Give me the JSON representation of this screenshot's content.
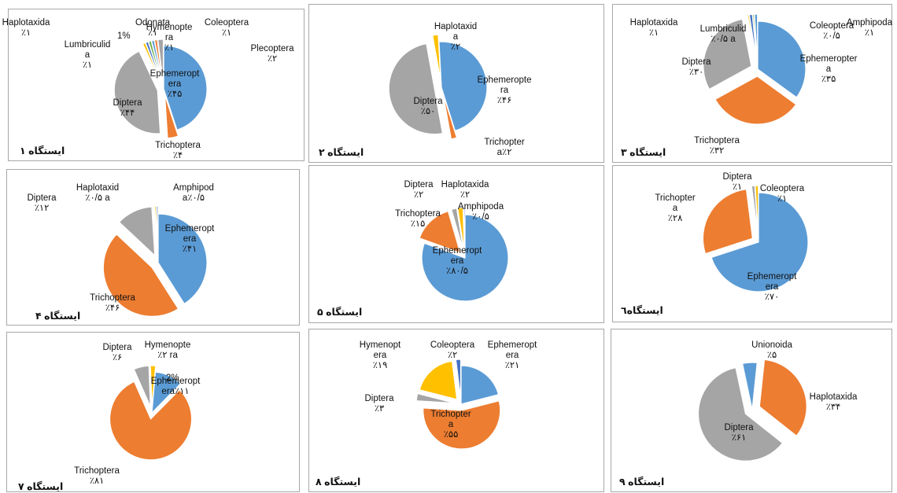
{
  "colors": {
    "blue": "#5b9bd5",
    "orange": "#ed7d31",
    "gray": "#a5a5a5",
    "yellow": "#ffc000",
    "darkblue": "#4472c4",
    "green": "#70ad47"
  },
  "chart_data": [
    {
      "type": "pie",
      "station": "ایستگاه ۱",
      "slices": [
        {
          "name": "Ephemeroptera",
          "label_lines": [
            "Ephemeropt",
            "era"
          ],
          "value": 45,
          "pct_label": "٪۴۵",
          "color": "blue",
          "exploded": false
        },
        {
          "name": "Trichoptera",
          "label_lines": [
            "Trichoptera"
          ],
          "value": 4,
          "pct_label": "٪۴",
          "color": "orange",
          "exploded": true
        },
        {
          "name": "Diptera",
          "label_lines": [
            "Diptera"
          ],
          "value": 44,
          "pct_label": "٪۴۴",
          "color": "gray",
          "exploded": true
        },
        {
          "name": "Lumbriculida",
          "label_lines": [
            "Lumbriculid",
            "a"
          ],
          "value": 1,
          "pct_label": "٪۱",
          "color": "yellow",
          "exploded": true
        },
        {
          "name": "Haplotaxida",
          "label_lines": [
            "Haplotaxida"
          ],
          "value": 1,
          "pct_label": "٪۱",
          "color": "darkblue",
          "exploded": true
        },
        {
          "name": "Odonata",
          "label_lines": [
            "Odonata"
          ],
          "value": 1,
          "pct_label": "٪۱",
          "color": "green",
          "exploded": true
        },
        {
          "name": "Hymenoptera",
          "label_lines": [
            "Hymenopte",
            "ra"
          ],
          "value": 1,
          "pct_label": "٪۱",
          "color": "blue",
          "exploded": true
        },
        {
          "name": "Coleoptera",
          "label_lines": [
            "Coleoptera"
          ],
          "value": 1,
          "pct_label": "٪۱",
          "color": "orange",
          "exploded": true
        },
        {
          "name": "Plecoptera",
          "label_lines": [
            "Plecoptera"
          ],
          "value": 2,
          "pct_label": "٪۲",
          "color": "gray",
          "exploded": true
        }
      ],
      "annotations": [
        "1%"
      ]
    },
    {
      "type": "pie",
      "station": "ایستگاه ۲",
      "slices": [
        {
          "name": "Ephemeroptera",
          "label_lines": [
            "Ephemeropte",
            "ra"
          ],
          "value": 46,
          "pct_label": "٪۴۶",
          "color": "blue",
          "exploded": false
        },
        {
          "name": "Trichoptera",
          "label_lines": [
            "Trichopter",
            "a٪۲"
          ],
          "value": 2,
          "pct_label": "",
          "color": "orange",
          "exploded": true
        },
        {
          "name": "Diptera",
          "label_lines": [
            "Diptera"
          ],
          "value": 50,
          "pct_label": "٪۵۰",
          "color": "gray",
          "exploded": true
        },
        {
          "name": "Haplotaxida",
          "label_lines": [
            "Haplotaxid",
            "a"
          ],
          "value": 2,
          "pct_label": "٪۲",
          "color": "yellow",
          "exploded": true
        }
      ]
    },
    {
      "type": "pie",
      "station": "ایستگاه ۳",
      "slices": [
        {
          "name": "Ephemeroptera",
          "label_lines": [
            "Ephemeropter",
            "a"
          ],
          "value": 35,
          "pct_label": "٪۳۵",
          "color": "blue",
          "exploded": false
        },
        {
          "name": "Trichoptera",
          "label_lines": [
            "Trichoptera"
          ],
          "value": 32,
          "pct_label": "٪۳۲",
          "color": "orange",
          "exploded": true
        },
        {
          "name": "Diptera",
          "label_lines": [
            "Diptera"
          ],
          "value": 30,
          "pct_label": "٪۳۰",
          "color": "gray",
          "exploded": true
        },
        {
          "name": "Lumbriculida",
          "label_lines": [
            "Lumbriculid",
            "٪۰/۵ a"
          ],
          "value": 0.5,
          "pct_label": "",
          "color": "yellow",
          "exploded": true
        },
        {
          "name": "Haplotaxida",
          "label_lines": [
            "Haplotaxida"
          ],
          "value": 1,
          "pct_label": "٪۱",
          "color": "darkblue",
          "exploded": true
        },
        {
          "name": "Coleoptera",
          "label_lines": [
            "Coleoptera"
          ],
          "value": 0.5,
          "pct_label": "٪۰/۵",
          "color": "green",
          "exploded": true
        },
        {
          "name": "Amphipoda",
          "label_lines": [
            "Amphipoda"
          ],
          "value": 1,
          "pct_label": "٪۱",
          "color": "blue",
          "exploded": true
        }
      ]
    },
    {
      "type": "pie",
      "station": "ایستگاه ۴",
      "slices": [
        {
          "name": "Ephemeroptera",
          "label_lines": [
            "Ephemeropt",
            "era"
          ],
          "value": 41,
          "pct_label": "٪۴۱",
          "color": "blue",
          "exploded": false
        },
        {
          "name": "Trichoptera",
          "label_lines": [
            "Trichoptera"
          ],
          "value": 46,
          "pct_label": "٪۴۶",
          "color": "orange",
          "exploded": true
        },
        {
          "name": "Diptera",
          "label_lines": [
            "Diptera"
          ],
          "value": 12,
          "pct_label": "٪۱۲",
          "color": "gray",
          "exploded": true
        },
        {
          "name": "Haplotaxida",
          "label_lines": [
            "Haplotaxid",
            "٪۰/۵ a"
          ],
          "value": 0.5,
          "pct_label": "",
          "color": "yellow",
          "exploded": true
        },
        {
          "name": "Amphipoda",
          "label_lines": [
            "Amphipod",
            "a٪۰/۵"
          ],
          "value": 0.5,
          "pct_label": "",
          "color": "darkblue",
          "exploded": true
        }
      ]
    },
    {
      "type": "pie",
      "station": "ایستگاه ۵",
      "slices": [
        {
          "name": "Ephemeroptera",
          "label_lines": [
            "Ephemeropt",
            "era"
          ],
          "value": 80.5,
          "pct_label": "٪۸۰/۵",
          "color": "blue",
          "exploded": false
        },
        {
          "name": "Trichoptera",
          "label_lines": [
            "Trichoptera"
          ],
          "value": 15,
          "pct_label": "٪۱۵",
          "color": "orange",
          "exploded": true
        },
        {
          "name": "Diptera",
          "label_lines": [
            "Diptera"
          ],
          "value": 2,
          "pct_label": "٪۲",
          "color": "gray",
          "exploded": true
        },
        {
          "name": "Haplotaxida",
          "label_lines": [
            "Haplotaxida"
          ],
          "value": 2,
          "pct_label": "٪۲",
          "color": "yellow",
          "exploded": true
        },
        {
          "name": "Amphipoda",
          "label_lines": [
            "Amphipoda"
          ],
          "value": 0.5,
          "pct_label": "٪۰/۵",
          "color": "darkblue",
          "exploded": true
        }
      ]
    },
    {
      "type": "pie",
      "station": "ایستگاه٦",
      "slices": [
        {
          "name": "Ephemeroptera",
          "label_lines": [
            "Ephemeropt",
            "era"
          ],
          "value": 70,
          "pct_label": "٪۷۰",
          "color": "blue",
          "exploded": false
        },
        {
          "name": "Trichoptera",
          "label_lines": [
            "Trichopter",
            "a"
          ],
          "value": 28,
          "pct_label": "٪۲۸",
          "color": "orange",
          "exploded": true
        },
        {
          "name": "Diptera",
          "label_lines": [
            "Diptera"
          ],
          "value": 1,
          "pct_label": "٪۱",
          "color": "gray",
          "exploded": true
        },
        {
          "name": "Coleoptera",
          "label_lines": [
            "Coleoptera"
          ],
          "value": 1,
          "pct_label": "٪۱",
          "color": "yellow",
          "exploded": true
        }
      ]
    },
    {
      "type": "pie",
      "station": "ایستگاه ۷",
      "slices": [
        {
          "name": "Ephemeroptera",
          "label_lines": [
            "Ephemeropt",
            "era٪۱۱"
          ],
          "value": 11,
          "pct_label": "",
          "color": "blue",
          "exploded": false
        },
        {
          "name": "Trichoptera",
          "label_lines": [
            "Trichoptera"
          ],
          "value": 81,
          "pct_label": "٪۸۱",
          "color": "orange",
          "exploded": true
        },
        {
          "name": "Diptera",
          "label_lines": [
            "Diptera"
          ],
          "value": 6,
          "pct_label": "٪۶",
          "color": "gray",
          "exploded": true
        },
        {
          "name": "Hymenoptera",
          "label_lines": [
            "Hymenopte",
            "٪۲ ra"
          ],
          "value": 2,
          "pct_label": "",
          "color": "yellow",
          "exploded": true
        }
      ],
      "annotations": [
        "2%"
      ]
    },
    {
      "type": "pie",
      "station": "ایستگاه ۸",
      "slices": [
        {
          "name": "Ephemeroptera",
          "label_lines": [
            "Ephemeropt",
            "era"
          ],
          "value": 21,
          "pct_label": "٪۲۱",
          "color": "blue",
          "exploded": false
        },
        {
          "name": "Trichoptera",
          "label_lines": [
            "Trichopter",
            "a"
          ],
          "value": 55,
          "pct_label": "٪۵۵",
          "color": "orange",
          "exploded": true
        },
        {
          "name": "Diptera",
          "label_lines": [
            "Diptera"
          ],
          "value": 3,
          "pct_label": "٪۳",
          "color": "gray",
          "exploded": true
        },
        {
          "name": "Hymenoptera",
          "label_lines": [
            "Hymenopt",
            "era"
          ],
          "value": 19,
          "pct_label": "٪۱۹",
          "color": "yellow",
          "exploded": true
        },
        {
          "name": "Coleoptera",
          "label_lines": [
            "Coleoptera"
          ],
          "value": 2,
          "pct_label": "٪۲",
          "color": "darkblue",
          "exploded": true
        }
      ]
    },
    {
      "type": "pie",
      "station": "ایستگاه ۹",
      "slices": [
        {
          "name": "Unionoida",
          "label_lines": [
            "Unionoida"
          ],
          "value": 5,
          "pct_label": "٪۵",
          "color": "blue",
          "exploded": false
        },
        {
          "name": "Haplotaxida",
          "label_lines": [
            "Haplotaxida"
          ],
          "value": 34,
          "pct_label": "٪۳۴",
          "color": "orange",
          "exploded": true
        },
        {
          "name": "Diptera",
          "label_lines": [
            "Diptera"
          ],
          "value": 61,
          "pct_label": "٪۶۱",
          "color": "gray",
          "exploded": true
        }
      ]
    }
  ]
}
